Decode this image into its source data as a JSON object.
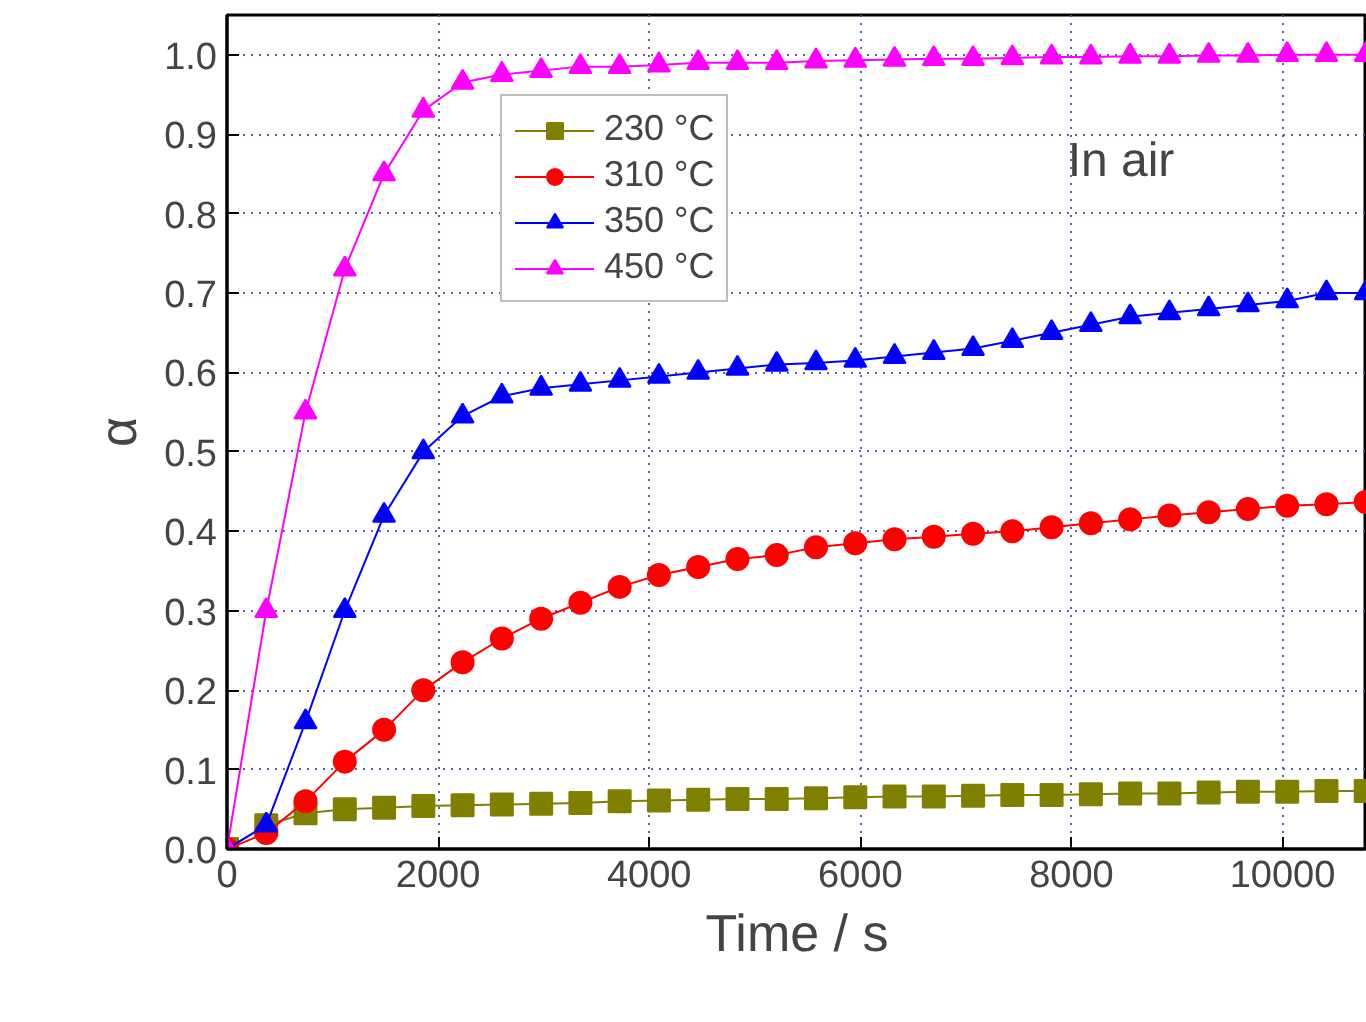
{
  "chart_data": {
    "type": "line",
    "xlabel": "Time / s",
    "ylabel": "α",
    "xlim": [
      0,
      10800
    ],
    "ylim": [
      0,
      1.05
    ],
    "xticks": [
      0,
      2000,
      4000,
      6000,
      8000,
      10000
    ],
    "yticks": [
      {
        "value": 0,
        "label": "0.0"
      },
      0.1,
      0.2,
      0.3,
      0.4,
      0.5,
      0.6,
      0.7,
      0.8,
      0.9,
      {
        "value": 1,
        "label": "1.0"
      }
    ],
    "grid": true,
    "legend": "top left",
    "line_style": "solid",
    "annotations": [
      "In air"
    ],
    "x": [
      0,
      372,
      744,
      1116,
      1488,
      1860,
      2232,
      2604,
      2976,
      3348,
      3720,
      4092,
      4464,
      4836,
      5208,
      5580,
      5952,
      6324,
      6696,
      7068,
      7440,
      7812,
      8184,
      8556,
      8928,
      9300,
      9672,
      10044,
      10416,
      10788
    ],
    "series": [
      {
        "name": "230 °C",
        "color": "#808000",
        "marker": "square",
        "values": [
          0,
          0.03,
          0.045,
          0.05,
          0.052,
          0.054,
          0.055,
          0.056,
          0.057,
          0.058,
          0.06,
          0.061,
          0.062,
          0.063,
          0.063,
          0.064,
          0.065,
          0.066,
          0.066,
          0.067,
          0.068,
          0.068,
          0.069,
          0.07,
          0.07,
          0.071,
          0.072,
          0.072,
          0.073,
          0.073
        ]
      },
      {
        "name": "310 °C",
        "color": "#ff0000",
        "marker": "circle",
        "values": [
          0,
          0.02,
          0.06,
          0.11,
          0.15,
          0.2,
          0.235,
          0.265,
          0.29,
          0.31,
          0.33,
          0.345,
          0.355,
          0.365,
          0.37,
          0.38,
          0.385,
          0.39,
          0.393,
          0.397,
          0.4,
          0.405,
          0.41,
          0.415,
          0.42,
          0.424,
          0.428,
          0.432,
          0.434,
          0.437
        ]
      },
      {
        "name": "350 °C",
        "color": "#0000ff",
        "marker": "triangle",
        "values": [
          0,
          0.03,
          0.16,
          0.3,
          0.42,
          0.5,
          0.545,
          0.57,
          0.58,
          0.585,
          0.59,
          0.595,
          0.6,
          0.605,
          0.61,
          0.612,
          0.615,
          0.62,
          0.625,
          0.63,
          0.64,
          0.65,
          0.66,
          0.67,
          0.675,
          0.68,
          0.685,
          0.69,
          0.7,
          0.7
        ]
      },
      {
        "name": "450 °C",
        "color": "#ff00ff",
        "marker": "triangle",
        "values": [
          0,
          0.3,
          0.55,
          0.73,
          0.85,
          0.93,
          0.965,
          0.975,
          0.98,
          0.985,
          0.985,
          0.987,
          0.99,
          0.99,
          0.99,
          0.992,
          0.993,
          0.994,
          0.995,
          0.995,
          0.996,
          0.997,
          0.997,
          0.998,
          0.998,
          0.999,
          0.999,
          1.0,
          1.0,
          1.0
        ]
      }
    ]
  }
}
